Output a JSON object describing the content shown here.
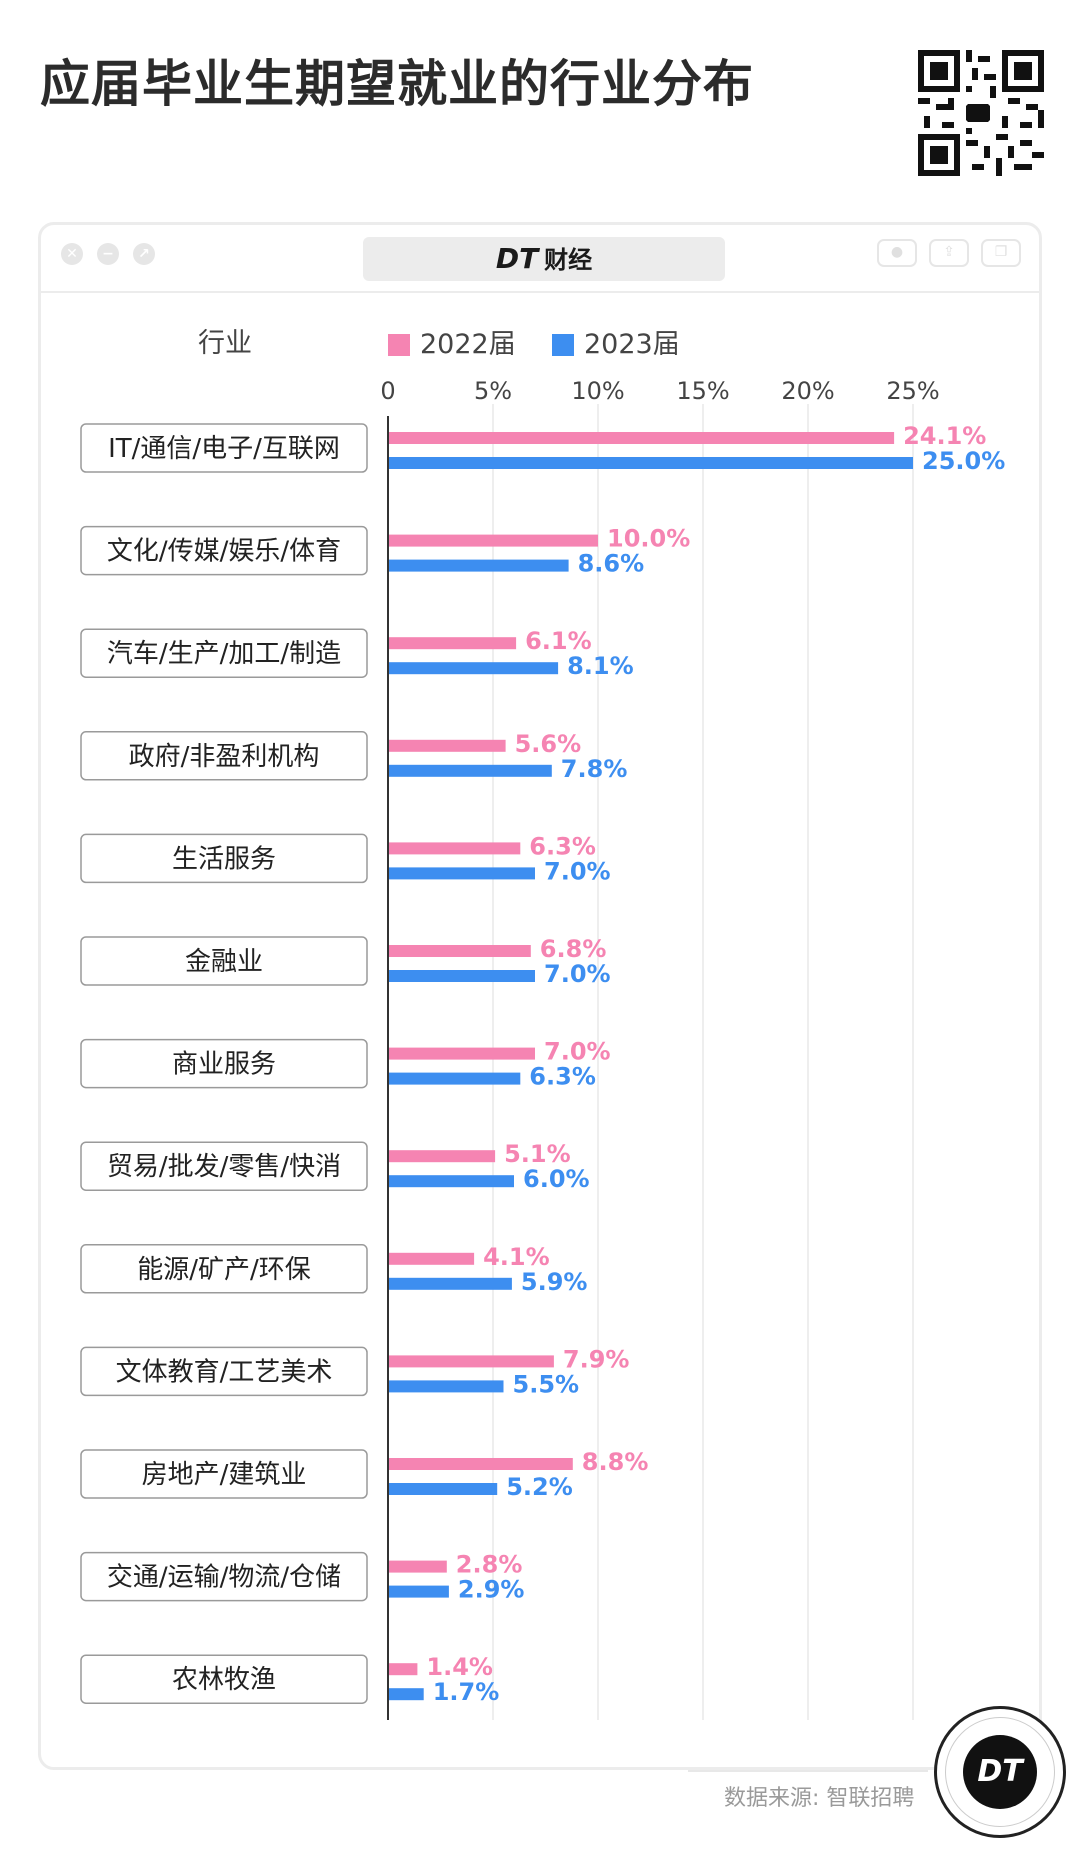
{
  "header": {
    "title": "应届毕业生期望就业的行业分布"
  },
  "window": {
    "brand_logo": "DT",
    "brand_name": "财经"
  },
  "footer": {
    "source": "数据来源: 智联招聘",
    "badge_logo": "DT"
  },
  "colors": {
    "series_2022": "#f584b2",
    "series_2023": "#3d8ef0",
    "label_box_border": "#9a9a9a",
    "grid": "#e9e9e9"
  },
  "chart_data": {
    "type": "bar",
    "orientation": "horizontal",
    "category_header": "行业",
    "categories": [
      "IT/通信/电子/互联网",
      "文化/传媒/娱乐/体育",
      "汽车/生产/加工/制造",
      "政府/非盈利机构",
      "生活服务",
      "金融业",
      "商业服务",
      "贸易/批发/零售/快消",
      "能源/矿产/环保",
      "文体教育/工艺美术",
      "房地产/建筑业",
      "交通/运输/物流/仓储",
      "农林牧渔"
    ],
    "series": [
      {
        "name": "2022届",
        "values": [
          24.1,
          10.0,
          6.1,
          5.6,
          6.3,
          6.8,
          7.0,
          5.1,
          4.1,
          7.9,
          8.8,
          2.8,
          1.4
        ],
        "labels": [
          "24.1%",
          "10.0%",
          "6.1%",
          "5.6%",
          "6.3%",
          "6.8%",
          "7.0%",
          "5.1%",
          "4.1%",
          "7.9%",
          "8.8%",
          "2.8%",
          "1.4%"
        ]
      },
      {
        "name": "2023届",
        "values": [
          25.0,
          8.6,
          8.1,
          7.8,
          7.0,
          7.0,
          6.3,
          6.0,
          5.9,
          5.5,
          5.2,
          2.9,
          1.7
        ],
        "labels": [
          "25.0%",
          "8.6%",
          "8.1%",
          "7.8%",
          "7.0%",
          "7.0%",
          "6.3%",
          "6.0%",
          "5.9%",
          "5.5%",
          "5.2%",
          "2.9%",
          "1.7%"
        ]
      }
    ],
    "xlim": [
      0,
      25
    ],
    "xticks": [
      0,
      5,
      10,
      15,
      20,
      25
    ],
    "xtick_labels": [
      "0",
      "5%",
      "10%",
      "15%",
      "20%",
      "25%"
    ],
    "grid": true,
    "legend_position": "top"
  }
}
